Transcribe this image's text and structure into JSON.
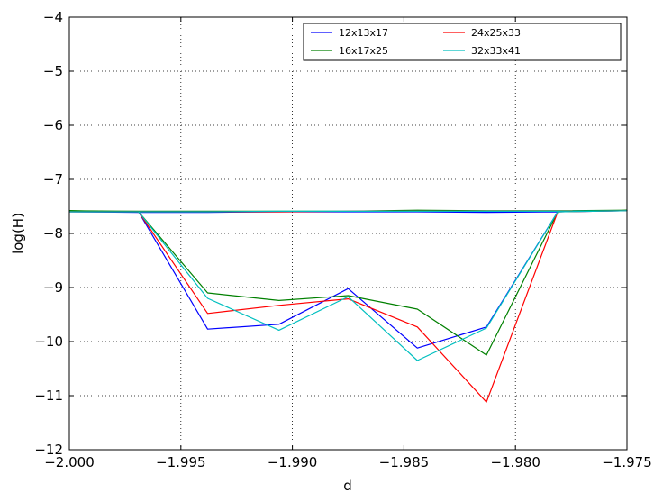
{
  "chart_data": {
    "type": "line",
    "title": "",
    "xlabel": "d",
    "ylabel": "log(H)",
    "xlim": [
      -2.0,
      -1.975
    ],
    "ylim": [
      -12,
      -4
    ],
    "xticks": [
      -2.0,
      -1.995,
      -1.99,
      -1.985,
      -1.98,
      -1.975
    ],
    "xtick_labels": [
      "−2.000",
      "−1.995",
      "−1.990",
      "−1.985",
      "−1.980",
      "−1.975"
    ],
    "yticks": [
      -12,
      -11,
      -10,
      -9,
      -8,
      -7,
      -6,
      -5,
      -4
    ],
    "ytick_labels": [
      "−12",
      "−11",
      "−10",
      "−9",
      "−8",
      "−7",
      "−6",
      "−5",
      "−4"
    ],
    "grid": true,
    "legend": {
      "placement": "top-right",
      "columns": 3
    },
    "series": [
      {
        "name": "12x13x17",
        "color": "#0000ff",
        "x": [
          -2.0,
          -1.9969,
          -1.9938,
          -1.9906,
          -1.9875,
          -1.9844,
          -1.9813,
          -1.9781,
          -1.975,
          -1.9781,
          -1.9813,
          -1.9844,
          -1.9875,
          -1.9906,
          -1.9938,
          -1.9969,
          -2.0
        ],
        "y": [
          -7.6,
          -7.6,
          -9.77,
          -9.68,
          -9.02,
          -10.12,
          -9.73,
          -7.6,
          -7.58,
          -7.6,
          -7.61,
          -7.6,
          -7.6,
          -7.6,
          -7.61,
          -7.61,
          -7.6
        ]
      },
      {
        "name": "16x17x25",
        "color": "#008000",
        "x": [
          -2.0,
          -1.9969,
          -1.9938,
          -1.9906,
          -1.9875,
          -1.9844,
          -1.9813,
          -1.9781,
          -1.975,
          -1.9781,
          -1.9813,
          -1.9844,
          -1.9875,
          -1.9906,
          -1.9938,
          -1.9969,
          -2.0
        ],
        "y": [
          -7.58,
          -7.6,
          -9.1,
          -9.24,
          -9.15,
          -9.4,
          -10.25,
          -7.6,
          -7.57,
          -7.58,
          -7.58,
          -7.57,
          -7.59,
          -7.59,
          -7.59,
          -7.59,
          -7.58
        ]
      },
      {
        "name": "24x25x33",
        "color": "#ff0000",
        "x": [
          -2.0,
          -1.9969,
          -1.9938,
          -1.9906,
          -1.9875,
          -1.9844,
          -1.9813,
          -1.9781,
          -1.975,
          -1.9781,
          -1.9813,
          -1.9844,
          -1.9875,
          -1.9906,
          -1.9938,
          -1.9969,
          -2.0
        ],
        "y": [
          -7.6,
          -7.6,
          -9.48,
          -9.33,
          -9.21,
          -9.73,
          -11.12,
          -7.6,
          -7.58,
          -7.59,
          -7.59,
          -7.59,
          -7.59,
          -7.6,
          -7.6,
          -7.6,
          -7.6
        ]
      },
      {
        "name": "32x33x41",
        "color": "#00bfbf",
        "x": [
          -2.0,
          -1.9969,
          -1.9938,
          -1.9906,
          -1.9875,
          -1.9844,
          -1.9813,
          -1.9781,
          -1.975,
          -1.9781,
          -1.9813,
          -1.9844,
          -1.9875,
          -1.9906,
          -1.9938,
          -1.9969,
          -2.0
        ],
        "y": [
          -7.6,
          -7.6,
          -9.2,
          -9.79,
          -9.17,
          -10.35,
          -9.75,
          -7.6,
          -7.58,
          -7.59,
          -7.59,
          -7.59,
          -7.59,
          -7.59,
          -7.6,
          -7.6,
          -7.6
        ]
      }
    ]
  }
}
